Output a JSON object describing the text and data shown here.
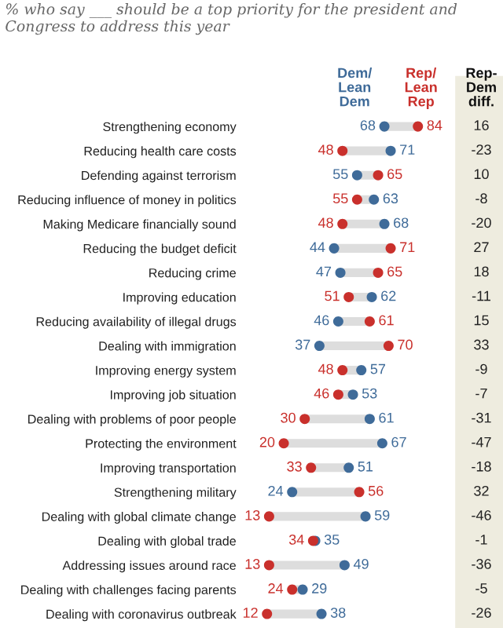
{
  "chart_data": {
    "type": "scatter",
    "orientation": "horizontal",
    "title": "% who say ___ should be a top priority for the president and Congress to address this year",
    "categories": [
      "Strengthening economy",
      "Reducing health care costs",
      "Defending against terrorism",
      "Reducing influence of money in politics",
      "Making Medicare financially sound",
      "Reducing the budget deficit",
      "Reducing crime",
      "Improving education",
      "Reducing availability of illegal drugs",
      "Dealing with immigration",
      "Improving energy system",
      "Improving job situation",
      "Dealing with problems of poor people",
      "Protecting the environment",
      "Improving transportation",
      "Strengthening military",
      "Dealing with global climate change",
      "Dealing with global trade",
      "Addressing issues around race",
      "Dealing with challenges facing parents",
      "Dealing with coronavirus outbreak"
    ],
    "series": [
      {
        "name": "Dem/\nLean\nDem",
        "color": "#3f6b99",
        "values": [
          68,
          71,
          55,
          63,
          68,
          44,
          47,
          62,
          46,
          37,
          57,
          53,
          61,
          67,
          51,
          24,
          59,
          35,
          49,
          29,
          38
        ]
      },
      {
        "name": "Rep/\nLean\nRep",
        "color": "#c9302c",
        "values": [
          84,
          48,
          65,
          55,
          48,
          71,
          65,
          51,
          61,
          70,
          48,
          46,
          30,
          20,
          33,
          56,
          13,
          34,
          13,
          24,
          12
        ]
      }
    ],
    "data_labels": true,
    "marker": "circle",
    "tick_labels": "y",
    "annotations": [
      "Rep-\nDem\ndiff.",
      "16",
      "-23",
      "10",
      "-8",
      "-20",
      "27",
      "18",
      "-11",
      "15",
      "33",
      "-9",
      "-7",
      "-31",
      "-47",
      "-18",
      "32",
      "-46",
      "-1",
      "-36",
      "-5",
      "-26"
    ]
  }
}
